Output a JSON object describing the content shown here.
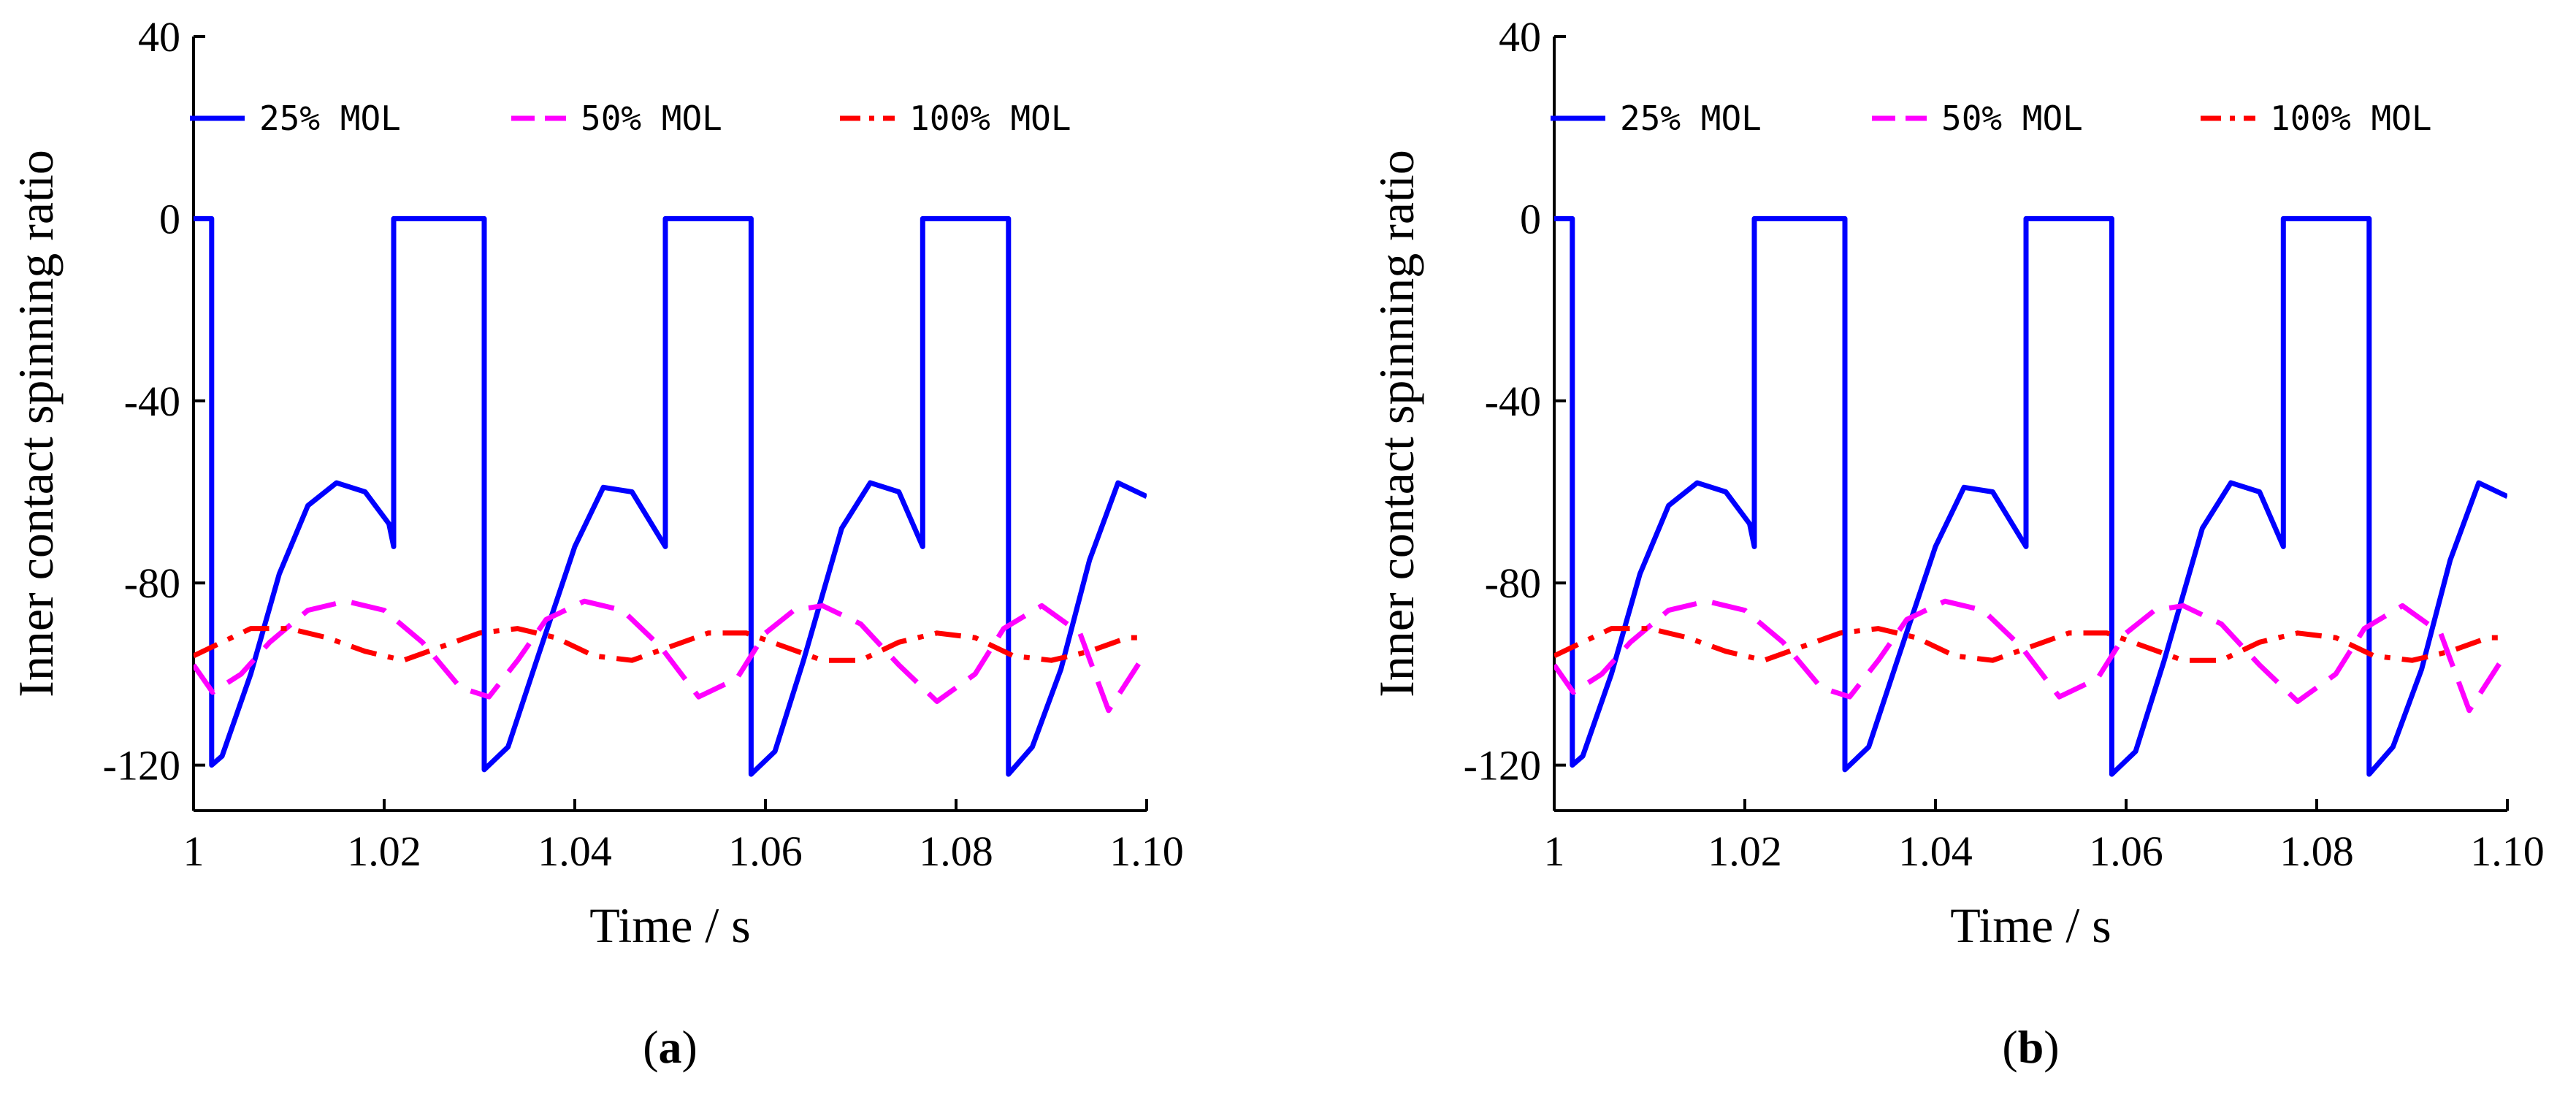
{
  "chart_data": [
    {
      "type": "line",
      "panel_label": "a",
      "xlabel": "Time / s",
      "ylabel": "Inner contact spinning ratio",
      "xlim": [
        1,
        1.1
      ],
      "ylim": [
        -130,
        40
      ],
      "xticks": [
        1,
        1.02,
        1.04,
        1.06,
        1.08,
        1.1
      ],
      "xtick_labels": [
        "1",
        "1.02",
        "1.04",
        "1.06",
        "1.08",
        "1.10"
      ],
      "yticks": [
        40,
        0,
        -40,
        -80,
        -120
      ],
      "ytick_labels": [
        "40",
        "0",
        "-40",
        "-80",
        "-120"
      ],
      "legend_position": "top",
      "series": [
        {
          "name": "25% MOL",
          "color": "#0000ff",
          "style": "solid",
          "x": [
            1.0,
            1.0019,
            1.0019,
            1.003,
            1.006,
            1.009,
            1.012,
            1.015,
            1.018,
            1.0205,
            1.021,
            1.021,
            1.0305,
            1.0305,
            1.033,
            1.036,
            1.04,
            1.043,
            1.046,
            1.0495,
            1.0495,
            1.0585,
            1.0585,
            1.061,
            1.064,
            1.068,
            1.071,
            1.074,
            1.0765,
            1.0765,
            1.0855,
            1.0855,
            1.088,
            1.091,
            1.094,
            1.097,
            1.1
          ],
          "y": [
            0,
            0,
            -120,
            -118,
            -100,
            -78,
            -63,
            -58,
            -60,
            -67,
            -72,
            0,
            0,
            -121,
            -116,
            -97,
            -72,
            -59,
            -60,
            -72,
            0,
            0,
            -122,
            -117,
            -97,
            -68,
            -58,
            -60,
            -72,
            0,
            0,
            -122,
            -116,
            -99,
            -75,
            -58,
            -61
          ]
        },
        {
          "name": "50% MOL",
          "color": "#ff00ff",
          "style": "dashed",
          "x": [
            1.0,
            1.002,
            1.005,
            1.008,
            1.012,
            1.016,
            1.02,
            1.024,
            1.028,
            1.031,
            1.034,
            1.037,
            1.041,
            1.045,
            1.049,
            1.053,
            1.057,
            1.06,
            1.063,
            1.066,
            1.07,
            1.074,
            1.078,
            1.082,
            1.085,
            1.089,
            1.093,
            1.096,
            1.1
          ],
          "y": [
            -98,
            -104,
            -100,
            -93,
            -86,
            -84,
            -86,
            -93,
            -103,
            -105,
            -97,
            -88,
            -84,
            -86,
            -94,
            -105,
            -101,
            -91,
            -86,
            -85,
            -89,
            -98,
            -106,
            -100,
            -90,
            -85,
            -91,
            -108,
            -95
          ]
        },
        {
          "name": "100% MOL",
          "color": "#ff0000",
          "style": "dashdot",
          "x": [
            1.0,
            1.003,
            1.006,
            1.01,
            1.014,
            1.018,
            1.022,
            1.026,
            1.03,
            1.034,
            1.038,
            1.042,
            1.046,
            1.05,
            1.054,
            1.058,
            1.062,
            1.066,
            1.07,
            1.074,
            1.078,
            1.082,
            1.086,
            1.09,
            1.094,
            1.098,
            1.1
          ],
          "y": [
            -96,
            -93,
            -90,
            -90,
            -92,
            -95,
            -97,
            -94,
            -91,
            -90,
            -92,
            -96,
            -97,
            -94,
            -91,
            -91,
            -94,
            -97,
            -97,
            -93,
            -91,
            -92,
            -96,
            -97,
            -95,
            -92,
            -92
          ]
        }
      ]
    },
    {
      "type": "line",
      "panel_label": "b",
      "xlabel": "Time / s",
      "ylabel": "Inner contact spinning ratio",
      "xlim": [
        1,
        1.1
      ],
      "ylim": [
        -130,
        40
      ],
      "xticks": [
        1,
        1.02,
        1.04,
        1.06,
        1.08,
        1.1
      ],
      "xtick_labels": [
        "1",
        "1.02",
        "1.04",
        "1.06",
        "1.08",
        "1.10"
      ],
      "yticks": [
        40,
        0,
        -40,
        -80,
        -120
      ],
      "ytick_labels": [
        "40",
        "0",
        "-40",
        "-80",
        "-120"
      ],
      "legend_position": "top",
      "series": [
        {
          "name": "25% MOL",
          "color": "#0000ff",
          "style": "solid",
          "x": [
            1.0,
            1.0019,
            1.0019,
            1.003,
            1.006,
            1.009,
            1.012,
            1.015,
            1.018,
            1.0205,
            1.021,
            1.021,
            1.0305,
            1.0305,
            1.033,
            1.036,
            1.04,
            1.043,
            1.046,
            1.0495,
            1.0495,
            1.0585,
            1.0585,
            1.061,
            1.064,
            1.068,
            1.071,
            1.074,
            1.0765,
            1.0765,
            1.0855,
            1.0855,
            1.088,
            1.091,
            1.094,
            1.097,
            1.1
          ],
          "y": [
            0,
            0,
            -120,
            -118,
            -100,
            -78,
            -63,
            -58,
            -60,
            -67,
            -72,
            0,
            0,
            -121,
            -116,
            -97,
            -72,
            -59,
            -60,
            -72,
            0,
            0,
            -122,
            -117,
            -97,
            -68,
            -58,
            -60,
            -72,
            0,
            0,
            -122,
            -116,
            -99,
            -75,
            -58,
            -61
          ]
        },
        {
          "name": "50% MOL",
          "color": "#ff00ff",
          "style": "dashed",
          "x": [
            1.0,
            1.002,
            1.005,
            1.008,
            1.012,
            1.016,
            1.02,
            1.024,
            1.028,
            1.031,
            1.034,
            1.037,
            1.041,
            1.045,
            1.049,
            1.053,
            1.057,
            1.06,
            1.063,
            1.066,
            1.07,
            1.074,
            1.078,
            1.082,
            1.085,
            1.089,
            1.093,
            1.096,
            1.1
          ],
          "y": [
            -98,
            -104,
            -100,
            -93,
            -86,
            -84,
            -86,
            -93,
            -103,
            -105,
            -97,
            -88,
            -84,
            -86,
            -94,
            -105,
            -101,
            -91,
            -86,
            -85,
            -89,
            -98,
            -106,
            -100,
            -90,
            -85,
            -91,
            -108,
            -95
          ]
        },
        {
          "name": "100% MOL",
          "color": "#ff0000",
          "style": "dashdot",
          "x": [
            1.0,
            1.003,
            1.006,
            1.01,
            1.014,
            1.018,
            1.022,
            1.026,
            1.03,
            1.034,
            1.038,
            1.042,
            1.046,
            1.05,
            1.054,
            1.058,
            1.062,
            1.066,
            1.07,
            1.074,
            1.078,
            1.082,
            1.086,
            1.09,
            1.094,
            1.098,
            1.1
          ],
          "y": [
            -96,
            -93,
            -90,
            -90,
            -92,
            -95,
            -97,
            -94,
            -91,
            -90,
            -92,
            -96,
            -97,
            -94,
            -91,
            -91,
            -94,
            -97,
            -97,
            -93,
            -91,
            -92,
            -96,
            -97,
            -95,
            -92,
            -92
          ]
        }
      ]
    }
  ]
}
